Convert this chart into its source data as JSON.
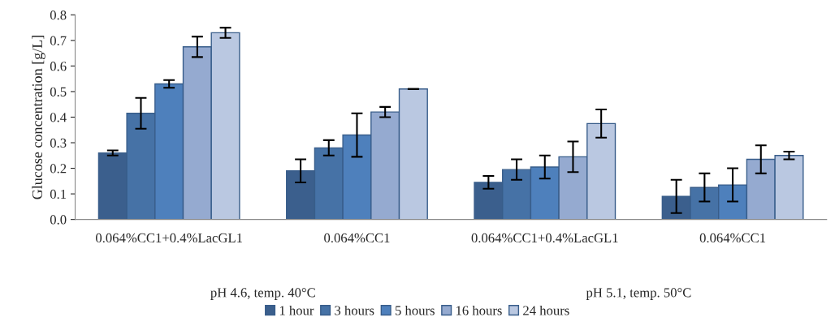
{
  "chart_data": {
    "type": "bar",
    "ylabel": "Glucose concentration [g/L]",
    "categories": [
      "0.064%CC1+0.4%LacGL1",
      "0.064%CC1",
      "0.064%CC1+0.4%LacGL1",
      "0.064%CC1"
    ],
    "series": [
      {
        "name": "1 hour",
        "color": "#3b5f8d",
        "values": [
          0.26,
          0.19,
          0.145,
          0.09
        ],
        "errors": [
          0.01,
          0.045,
          0.025,
          0.065
        ]
      },
      {
        "name": "3 hours",
        "color": "#4672a6",
        "values": [
          0.415,
          0.28,
          0.195,
          0.125
        ],
        "errors": [
          0.06,
          0.03,
          0.04,
          0.055
        ]
      },
      {
        "name": "5 hours",
        "color": "#4e80bc",
        "values": [
          0.53,
          0.33,
          0.205,
          0.135
        ],
        "errors": [
          0.015,
          0.085,
          0.045,
          0.065
        ]
      },
      {
        "name": "16 hours",
        "color": "#95aad0",
        "values": [
          0.675,
          0.42,
          0.245,
          0.235
        ],
        "errors": [
          0.04,
          0.02,
          0.06,
          0.055
        ]
      },
      {
        "name": "24 hours",
        "color": "#bac8e1",
        "values": [
          0.73,
          0.51,
          0.375,
          0.25
        ],
        "errors": [
          0.02,
          0,
          0.055,
          0.015
        ]
      }
    ],
    "annotations": [
      "pH 4.6, temp. 40°C",
      "pH 5.1, temp. 50°C"
    ],
    "ylim": [
      0,
      0.8
    ],
    "yticks": [
      {
        "value": 0,
        "label": "0.0"
      },
      0.1,
      0.2,
      0.3,
      0.4,
      0.5,
      0.6,
      0.7,
      0.8
    ],
    "grid": false,
    "legend": "bottom"
  }
}
